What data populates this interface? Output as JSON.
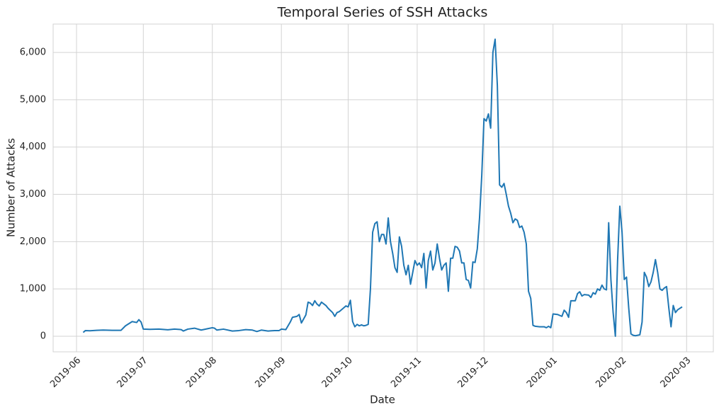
{
  "chart_data": {
    "type": "line",
    "title": "Temporal Series of SSH Attacks",
    "x_label": "Date",
    "y_label": "Number of Attacks",
    "color": "#1f77b4",
    "grid": true,
    "x": [
      18051,
      18052,
      18054,
      18057,
      18060,
      18064,
      18068,
      18070,
      18072,
      18073,
      18075,
      18076,
      18077,
      18078,
      18081,
      18085,
      18089,
      18092,
      18095,
      18096,
      18098,
      18101,
      18104,
      18107,
      18109,
      18110,
      18111,
      18114,
      18118,
      18121,
      18124,
      18127,
      18129,
      18131,
      18134,
      18137,
      18139,
      18140,
      18142,
      18144,
      18145,
      18147,
      18148,
      18149,
      18151,
      18152,
      18153,
      18154,
      18155,
      18156,
      18157,
      18158,
      18160,
      18161,
      18163,
      18164,
      18165,
      18166,
      18168,
      18169,
      18170,
      18171,
      18172,
      18173,
      18174,
      18175,
      18176,
      18177,
      18178,
      18179,
      18180,
      18181,
      18182,
      18183,
      18184,
      18185,
      18186,
      18187,
      18188,
      18189,
      18190,
      18191,
      18192,
      18193,
      18194,
      18195,
      18196,
      18197,
      18198,
      18199,
      18200,
      18201,
      18202,
      18203,
      18204,
      18205,
      18206,
      18207,
      18208,
      18209,
      18210,
      18211,
      18212,
      18213,
      18214,
      18215,
      18216,
      18217,
      18218,
      18219,
      18220,
      18221,
      18222,
      18223,
      18224,
      18225,
      18226,
      18227,
      18228,
      18229,
      18230,
      18231,
      18232,
      18233,
      18234,
      18235,
      18236,
      18237,
      18238,
      18239,
      18240,
      18241,
      18242,
      18243,
      18244,
      18245,
      18246,
      18247,
      18248,
      18249,
      18250,
      18251,
      18252,
      18253,
      18254,
      18256,
      18258,
      18259,
      18260,
      18261,
      18262,
      18264,
      18266,
      18267,
      18268,
      18269,
      18270,
      18272,
      18273,
      18274,
      18275,
      18276,
      18278,
      18279,
      18280,
      18281,
      18282,
      18283,
      18284,
      18285,
      18286,
      18287,
      18288,
      18289,
      18290,
      18291,
      18292,
      18293,
      18294,
      18295,
      18296,
      18297,
      18298,
      18299,
      18301,
      18302,
      18303,
      18304,
      18305,
      18306,
      18307,
      18308,
      18309,
      18310,
      18311,
      18312,
      18313,
      18314,
      18315,
      18316,
      18317,
      18318,
      18320
    ],
    "values": [
      80,
      120,
      115,
      125,
      130,
      125,
      125,
      220,
      280,
      310,
      290,
      350,
      300,
      150,
      145,
      150,
      135,
      150,
      140,
      110,
      150,
      170,
      130,
      160,
      180,
      170,
      130,
      150,
      110,
      120,
      140,
      130,
      100,
      130,
      110,
      120,
      120,
      150,
      140,
      300,
      400,
      420,
      460,
      280,
      450,
      720,
      700,
      650,
      750,
      680,
      640,
      720,
      650,
      590,
      500,
      420,
      500,
      520,
      600,
      640,
      620,
      760,
      310,
      200,
      250,
      220,
      240,
      220,
      230,
      250,
      1000,
      2200,
      2380,
      2420,
      2000,
      2150,
      2150,
      1950,
      2500,
      2000,
      1750,
      1450,
      1350,
      2100,
      1900,
      1500,
      1300,
      1500,
      1100,
      1350,
      1600,
      1500,
      1550,
      1450,
      1750,
      1020,
      1600,
      1800,
      1400,
      1550,
      1950,
      1650,
      1400,
      1500,
      1550,
      950,
      1650,
      1650,
      1900,
      1880,
      1800,
      1550,
      1550,
      1200,
      1180,
      1020,
      1570,
      1560,
      1850,
      2500,
      3400,
      4600,
      4550,
      4700,
      4400,
      6000,
      6280,
      5300,
      3200,
      3150,
      3230,
      3000,
      2750,
      2600,
      2400,
      2480,
      2450,
      2300,
      2330,
      2200,
      1950,
      950,
      800,
      230,
      210,
      200,
      200,
      180,
      210,
      180,
      470,
      460,
      420,
      550,
      500,
      400,
      750,
      750,
      900,
      940,
      850,
      880,
      870,
      820,
      920,
      890,
      1000,
      970,
      1080,
      1000,
      980,
      2400,
      1200,
      500,
      0,
      1600,
      2750,
      2200,
      1200,
      1250,
      600,
      50,
      20,
      10,
      30,
      300,
      1350,
      1250,
      1050,
      1150,
      1350,
      1620,
      1350,
      1000,
      970,
      1020,
      1050,
      600,
      200,
      650,
      500,
      560,
      620
    ],
    "xlim": [
      18037.5,
      18334
    ],
    "xticks": [
      {
        "value": 18048,
        "label": "2019-06"
      },
      {
        "value": 18078,
        "label": "2019-07"
      },
      {
        "value": 18109,
        "label": "2019-08"
      },
      {
        "value": 18140,
        "label": "2019-09"
      },
      {
        "value": 18170,
        "label": "2019-10"
      },
      {
        "value": 18201,
        "label": "2019-11"
      },
      {
        "value": 18231,
        "label": "2019-12"
      },
      {
        "value": 18262,
        "label": "2020-01"
      },
      {
        "value": 18293,
        "label": "2020-02"
      },
      {
        "value": 18322,
        "label": "2020-03"
      }
    ],
    "ylim": [
      -330,
      6600
    ],
    "yticks": [
      0,
      {
        "value": 1000,
        "label": "1,000"
      },
      {
        "value": 2000,
        "label": "2,000"
      },
      {
        "value": 3000,
        "label": "3,000"
      },
      {
        "value": 4000,
        "label": "4,000"
      },
      {
        "value": 5000,
        "label": "5,000"
      },
      {
        "value": 6000,
        "label": "6,000"
      }
    ]
  }
}
